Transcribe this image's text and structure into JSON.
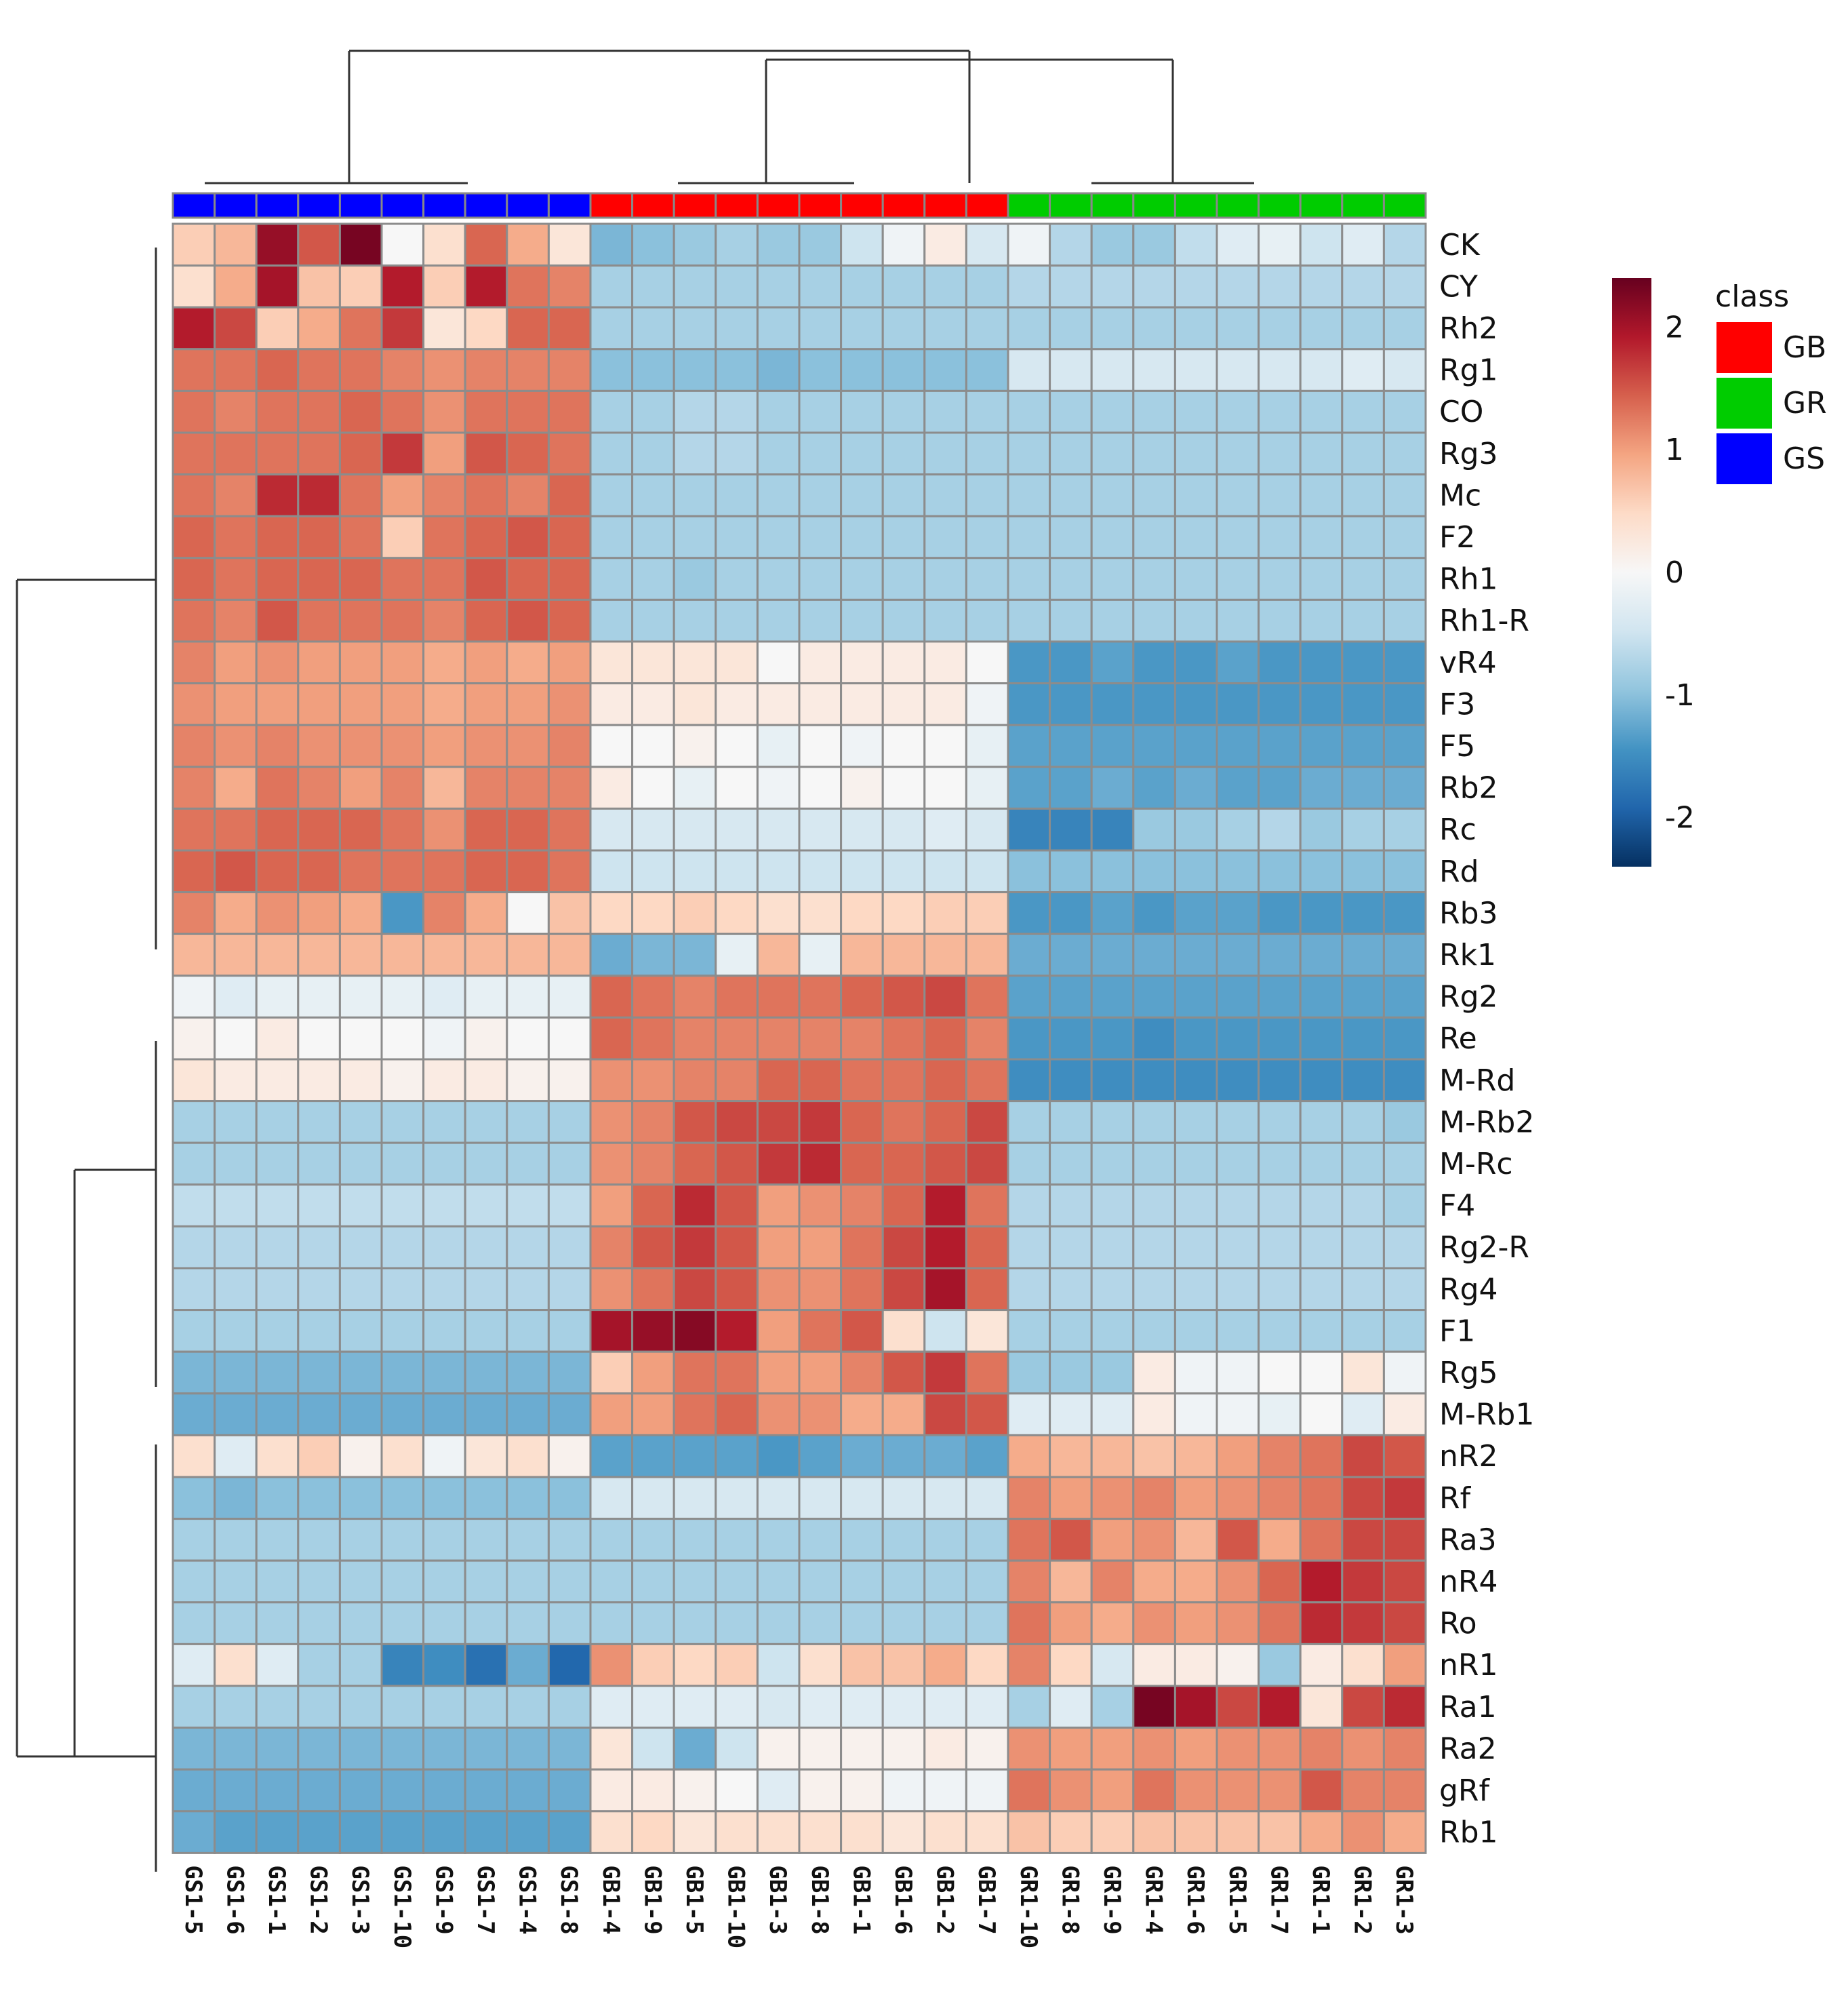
{
  "chart_data": {
    "type": "heatmap",
    "title": "",
    "rows": [
      "CK",
      "CY",
      "Rh2",
      "Rg1",
      "CO",
      "Rg3",
      "Mc",
      "F2",
      "Rh1",
      "Rh1-R",
      "vR4",
      "F3",
      "F5",
      "Rb2",
      "Rc",
      "Rd",
      "Rb3",
      "Rk1",
      "Rg2",
      "Re",
      "M-Rd",
      "M-Rb2",
      "M-Rc",
      "F4",
      "Rg2-R",
      "Rg4",
      "F1",
      "Rg5",
      "M-Rb1",
      "nR2",
      "Rf",
      "Ra3",
      "nR4",
      "Ro",
      "nR1",
      "Ra1",
      "Ra2",
      "gRf",
      "Rb1"
    ],
    "columns": [
      "GS1-5",
      "GS1-6",
      "GS1-1",
      "GS1-2",
      "GS1-3",
      "GS1-10",
      "GS1-9",
      "GS1-7",
      "GS1-4",
      "GS1-8",
      "GB1-4",
      "GB1-9",
      "GB1-5",
      "GB1-10",
      "GB1-3",
      "GB1-8",
      "GB1-1",
      "GB1-6",
      "GB1-2",
      "GB1-7",
      "GR1-10",
      "GR1-8",
      "GR1-9",
      "GR1-4",
      "GR1-6",
      "GR1-5",
      "GR1-7",
      "GR1-1",
      "GR1-2",
      "GR1-3"
    ],
    "column_classes": [
      "GS",
      "GS",
      "GS",
      "GS",
      "GS",
      "GS",
      "GS",
      "GS",
      "GS",
      "GS",
      "GB",
      "GB",
      "GB",
      "GB",
      "GB",
      "GB",
      "GB",
      "GB",
      "GB",
      "GB",
      "GR",
      "GR",
      "GR",
      "GR",
      "GR",
      "GR",
      "GR",
      "GR",
      "GR",
      "GR"
    ],
    "values": [
      [
        0.6,
        0.8,
        2.1,
        1.5,
        2.3,
        0.0,
        0.4,
        1.4,
        0.9,
        0.3,
        -1.1,
        -1.0,
        -0.9,
        -0.8,
        -0.9,
        -0.9,
        -0.5,
        -0.1,
        0.2,
        -0.4,
        -0.1,
        -0.7,
        -0.9,
        -0.9,
        -0.6,
        -0.3,
        -0.2,
        -0.5,
        -0.3,
        -0.7
      ],
      [
        0.4,
        0.9,
        2.0,
        0.7,
        0.6,
        1.9,
        0.6,
        1.9,
        1.3,
        1.2,
        -0.8,
        -0.8,
        -0.8,
        -0.8,
        -0.8,
        -0.8,
        -0.8,
        -0.8,
        -0.8,
        -0.8,
        -0.7,
        -0.7,
        -0.7,
        -0.7,
        -0.7,
        -0.7,
        -0.7,
        -0.7,
        -0.7,
        -0.7
      ],
      [
        1.9,
        1.6,
        0.6,
        0.9,
        1.3,
        1.7,
        0.3,
        0.5,
        1.4,
        1.4,
        -0.8,
        -0.8,
        -0.8,
        -0.8,
        -0.8,
        -0.8,
        -0.8,
        -0.8,
        -0.8,
        -0.8,
        -0.8,
        -0.8,
        -0.8,
        -0.8,
        -0.8,
        -0.8,
        -0.8,
        -0.8,
        -0.8,
        -0.8
      ],
      [
        1.3,
        1.3,
        1.4,
        1.3,
        1.3,
        1.2,
        1.1,
        1.2,
        1.2,
        1.2,
        -1.0,
        -1.0,
        -1.0,
        -1.0,
        -1.1,
        -1.0,
        -1.0,
        -1.0,
        -1.0,
        -1.0,
        -0.4,
        -0.4,
        -0.4,
        -0.4,
        -0.4,
        -0.4,
        -0.4,
        -0.4,
        -0.3,
        -0.4
      ],
      [
        1.3,
        1.2,
        1.3,
        1.3,
        1.4,
        1.3,
        1.1,
        1.3,
        1.3,
        1.3,
        -0.8,
        -0.8,
        -0.7,
        -0.7,
        -0.8,
        -0.8,
        -0.8,
        -0.8,
        -0.8,
        -0.8,
        -0.8,
        -0.8,
        -0.8,
        -0.8,
        -0.8,
        -0.8,
        -0.8,
        -0.8,
        -0.8,
        -0.8
      ],
      [
        1.3,
        1.3,
        1.3,
        1.3,
        1.4,
        1.7,
        1.0,
        1.5,
        1.4,
        1.3,
        -0.8,
        -0.8,
        -0.7,
        -0.7,
        -0.8,
        -0.8,
        -0.8,
        -0.8,
        -0.8,
        -0.8,
        -0.8,
        -0.8,
        -0.8,
        -0.8,
        -0.8,
        -0.8,
        -0.8,
        -0.8,
        -0.8,
        -0.8
      ],
      [
        1.3,
        1.2,
        1.8,
        1.8,
        1.3,
        1.0,
        1.2,
        1.3,
        1.2,
        1.4,
        -0.8,
        -0.8,
        -0.8,
        -0.8,
        -0.8,
        -0.8,
        -0.8,
        -0.8,
        -0.8,
        -0.8,
        -0.8,
        -0.8,
        -0.8,
        -0.8,
        -0.8,
        -0.8,
        -0.8,
        -0.8,
        -0.8,
        -0.8
      ],
      [
        1.4,
        1.3,
        1.4,
        1.4,
        1.3,
        0.6,
        1.3,
        1.4,
        1.5,
        1.4,
        -0.8,
        -0.8,
        -0.8,
        -0.8,
        -0.8,
        -0.8,
        -0.8,
        -0.8,
        -0.8,
        -0.8,
        -0.8,
        -0.8,
        -0.8,
        -0.8,
        -0.8,
        -0.8,
        -0.8,
        -0.8,
        -0.8,
        -0.8
      ],
      [
        1.4,
        1.3,
        1.4,
        1.4,
        1.4,
        1.3,
        1.3,
        1.5,
        1.4,
        1.4,
        -0.8,
        -0.8,
        -0.9,
        -0.8,
        -0.8,
        -0.8,
        -0.8,
        -0.8,
        -0.8,
        -0.8,
        -0.8,
        -0.8,
        -0.8,
        -0.8,
        -0.8,
        -0.8,
        -0.8,
        -0.8,
        -0.8,
        -0.8
      ],
      [
        1.3,
        1.2,
        1.5,
        1.3,
        1.3,
        1.3,
        1.2,
        1.4,
        1.5,
        1.4,
        -0.8,
        -0.8,
        -0.8,
        -0.8,
        -0.8,
        -0.8,
        -0.8,
        -0.8,
        -0.8,
        -0.8,
        -0.8,
        -0.8,
        -0.8,
        -0.8,
        -0.8,
        -0.8,
        -0.8,
        -0.8,
        -0.8,
        -0.8
      ],
      [
        1.2,
        1.0,
        1.1,
        1.0,
        1.0,
        1.0,
        0.9,
        1.0,
        0.9,
        1.0,
        0.3,
        0.3,
        0.3,
        0.3,
        0.0,
        0.2,
        0.2,
        0.2,
        0.2,
        0.0,
        -1.4,
        -1.4,
        -1.3,
        -1.4,
        -1.4,
        -1.3,
        -1.4,
        -1.4,
        -1.4,
        -1.4
      ],
      [
        1.1,
        1.0,
        1.0,
        1.0,
        1.0,
        1.0,
        0.9,
        1.0,
        1.0,
        1.1,
        0.2,
        0.2,
        0.3,
        0.2,
        0.2,
        0.2,
        0.2,
        0.2,
        0.2,
        -0.1,
        -1.4,
        -1.4,
        -1.4,
        -1.4,
        -1.4,
        -1.4,
        -1.4,
        -1.4,
        -1.4,
        -1.4
      ],
      [
        1.2,
        1.1,
        1.2,
        1.1,
        1.1,
        1.1,
        1.0,
        1.1,
        1.1,
        1.2,
        0.0,
        0.0,
        0.1,
        0.0,
        -0.2,
        0.0,
        -0.1,
        0.0,
        0.0,
        -0.2,
        -1.3,
        -1.3,
        -1.3,
        -1.3,
        -1.3,
        -1.3,
        -1.3,
        -1.3,
        -1.3,
        -1.3
      ],
      [
        1.2,
        0.9,
        1.3,
        1.2,
        1.0,
        1.2,
        0.8,
        1.2,
        1.2,
        1.2,
        0.2,
        0.0,
        -0.2,
        0.0,
        -0.1,
        0.0,
        0.1,
        0.0,
        0.0,
        -0.2,
        -1.3,
        -1.3,
        -1.2,
        -1.3,
        -1.2,
        -1.3,
        -1.3,
        -1.2,
        -1.2,
        -1.2
      ],
      [
        1.3,
        1.3,
        1.4,
        1.4,
        1.4,
        1.3,
        1.1,
        1.4,
        1.4,
        1.3,
        -0.4,
        -0.4,
        -0.4,
        -0.4,
        -0.4,
        -0.4,
        -0.4,
        -0.4,
        -0.3,
        -0.4,
        -1.6,
        -1.6,
        -1.6,
        -0.9,
        -0.9,
        -0.8,
        -0.7,
        -0.9,
        -0.8,
        -0.8
      ],
      [
        1.4,
        1.5,
        1.4,
        1.4,
        1.3,
        1.3,
        1.3,
        1.4,
        1.4,
        1.3,
        -0.5,
        -0.5,
        -0.5,
        -0.5,
        -0.5,
        -0.5,
        -0.5,
        -0.5,
        -0.5,
        -0.5,
        -1.0,
        -1.0,
        -1.0,
        -1.0,
        -1.0,
        -1.0,
        -1.0,
        -1.0,
        -1.0,
        -1.0
      ],
      [
        1.2,
        0.9,
        1.1,
        1.0,
        0.9,
        -1.4,
        1.2,
        0.9,
        0.0,
        0.7,
        0.5,
        0.5,
        0.6,
        0.5,
        0.4,
        0.4,
        0.5,
        0.5,
        0.6,
        0.6,
        -1.4,
        -1.4,
        -1.3,
        -1.4,
        -1.3,
        -1.3,
        -1.4,
        -1.4,
        -1.4,
        -1.4
      ],
      [
        0.8,
        0.8,
        0.8,
        0.8,
        0.8,
        0.8,
        0.8,
        0.8,
        0.8,
        0.8,
        -1.2,
        -1.1,
        -1.1,
        -0.2,
        0.8,
        -0.2,
        0.8,
        0.8,
        0.8,
        0.8,
        -1.2,
        -1.2,
        -1.2,
        -1.2,
        -1.2,
        -1.2,
        -1.2,
        -1.2,
        -1.2,
        -1.2
      ],
      [
        -0.1,
        -0.3,
        -0.2,
        -0.2,
        -0.2,
        -0.2,
        -0.3,
        -0.2,
        -0.2,
        -0.2,
        1.4,
        1.3,
        1.2,
        1.3,
        1.3,
        1.3,
        1.4,
        1.5,
        1.6,
        1.3,
        -1.3,
        -1.3,
        -1.3,
        -1.3,
        -1.3,
        -1.3,
        -1.3,
        -1.3,
        -1.3,
        -1.3
      ],
      [
        0.1,
        0.0,
        0.2,
        0.0,
        0.0,
        0.0,
        -0.1,
        0.1,
        0.0,
        0.0,
        1.4,
        1.3,
        1.2,
        1.2,
        1.2,
        1.2,
        1.2,
        1.3,
        1.4,
        1.2,
        -1.4,
        -1.4,
        -1.4,
        -1.5,
        -1.4,
        -1.4,
        -1.4,
        -1.4,
        -1.4,
        -1.4
      ],
      [
        0.3,
        0.2,
        0.2,
        0.2,
        0.2,
        0.1,
        0.2,
        0.2,
        0.1,
        0.1,
        1.1,
        1.1,
        1.2,
        1.2,
        1.4,
        1.4,
        1.3,
        1.3,
        1.4,
        1.3,
        -1.5,
        -1.5,
        -1.5,
        -1.5,
        -1.5,
        -1.5,
        -1.5,
        -1.5,
        -1.5,
        -1.5
      ],
      [
        -0.8,
        -0.8,
        -0.8,
        -0.8,
        -0.8,
        -0.8,
        -0.8,
        -0.8,
        -0.8,
        -0.8,
        1.1,
        1.2,
        1.5,
        1.6,
        1.6,
        1.7,
        1.4,
        1.3,
        1.4,
        1.6,
        -0.8,
        -0.8,
        -0.8,
        -0.8,
        -0.8,
        -0.8,
        -0.8,
        -0.8,
        -0.8,
        -0.9
      ],
      [
        -0.8,
        -0.8,
        -0.8,
        -0.8,
        -0.8,
        -0.8,
        -0.8,
        -0.8,
        -0.8,
        -0.8,
        1.1,
        1.2,
        1.4,
        1.5,
        1.7,
        1.8,
        1.4,
        1.4,
        1.5,
        1.6,
        -0.8,
        -0.8,
        -0.8,
        -0.8,
        -0.8,
        -0.8,
        -0.8,
        -0.8,
        -0.8,
        -0.8
      ],
      [
        -0.6,
        -0.6,
        -0.6,
        -0.6,
        -0.6,
        -0.6,
        -0.6,
        -0.6,
        -0.6,
        -0.6,
        1.0,
        1.4,
        1.8,
        1.5,
        1.0,
        1.1,
        1.2,
        1.4,
        1.9,
        1.3,
        -0.7,
        -0.7,
        -0.7,
        -0.7,
        -0.7,
        -0.7,
        -0.7,
        -0.7,
        -0.7,
        -0.8
      ],
      [
        -0.7,
        -0.7,
        -0.7,
        -0.7,
        -0.7,
        -0.7,
        -0.7,
        -0.7,
        -0.7,
        -0.7,
        1.2,
        1.5,
        1.7,
        1.5,
        1.0,
        1.0,
        1.3,
        1.6,
        1.9,
        1.4,
        -0.7,
        -0.7,
        -0.7,
        -0.7,
        -0.7,
        -0.7,
        -0.7,
        -0.7,
        -0.7,
        -0.7
      ],
      [
        -0.7,
        -0.7,
        -0.7,
        -0.7,
        -0.7,
        -0.7,
        -0.7,
        -0.7,
        -0.7,
        -0.7,
        1.1,
        1.3,
        1.6,
        1.5,
        1.1,
        1.1,
        1.3,
        1.6,
        2.0,
        1.4,
        -0.7,
        -0.7,
        -0.7,
        -0.7,
        -0.7,
        -0.7,
        -0.7,
        -0.7,
        -0.7,
        -0.7
      ],
      [
        -0.8,
        -0.8,
        -0.8,
        -0.8,
        -0.8,
        -0.8,
        -0.8,
        -0.8,
        -0.8,
        -0.8,
        2.0,
        2.1,
        2.2,
        1.9,
        1.0,
        1.3,
        1.5,
        0.4,
        -0.5,
        0.3,
        -0.8,
        -0.8,
        -0.8,
        -0.8,
        -0.8,
        -0.8,
        -0.8,
        -0.8,
        -0.8,
        -0.8
      ],
      [
        -1.1,
        -1.1,
        -1.1,
        -1.1,
        -1.1,
        -1.1,
        -1.1,
        -1.1,
        -1.1,
        -1.1,
        0.6,
        1.0,
        1.3,
        1.3,
        1.0,
        1.0,
        1.2,
        1.5,
        1.7,
        1.3,
        -0.9,
        -0.9,
        -0.9,
        0.2,
        -0.1,
        -0.1,
        0.0,
        0.0,
        0.3,
        -0.1
      ],
      [
        -1.2,
        -1.2,
        -1.2,
        -1.2,
        -1.2,
        -1.2,
        -1.2,
        -1.2,
        -1.2,
        -1.2,
        1.0,
        1.0,
        1.3,
        1.4,
        1.1,
        1.1,
        0.9,
        0.9,
        1.6,
        1.5,
        -0.3,
        -0.3,
        -0.3,
        0.2,
        -0.1,
        -0.1,
        -0.2,
        0.0,
        -0.3,
        0.2
      ],
      [
        0.4,
        -0.3,
        0.4,
        0.6,
        0.1,
        0.4,
        -0.1,
        0.3,
        0.4,
        0.1,
        -1.3,
        -1.3,
        -1.3,
        -1.3,
        -1.4,
        -1.3,
        -1.2,
        -1.2,
        -1.2,
        -1.3,
        0.9,
        0.8,
        0.8,
        0.7,
        0.8,
        1.0,
        1.2,
        1.3,
        1.6,
        1.5
      ],
      [
        -1.0,
        -1.1,
        -1.0,
        -1.0,
        -1.0,
        -1.0,
        -1.0,
        -1.0,
        -1.0,
        -1.0,
        -0.4,
        -0.4,
        -0.4,
        -0.4,
        -0.4,
        -0.4,
        -0.4,
        -0.4,
        -0.4,
        -0.4,
        1.2,
        1.0,
        1.1,
        1.2,
        1.0,
        1.1,
        1.2,
        1.3,
        1.6,
        1.7
      ],
      [
        -0.8,
        -0.8,
        -0.8,
        -0.8,
        -0.8,
        -0.8,
        -0.8,
        -0.8,
        -0.8,
        -0.8,
        -0.8,
        -0.8,
        -0.8,
        -0.8,
        -0.8,
        -0.8,
        -0.8,
        -0.8,
        -0.8,
        -0.8,
        1.3,
        1.5,
        1.0,
        1.1,
        0.8,
        1.5,
        0.9,
        1.3,
        1.6,
        1.6
      ],
      [
        -0.8,
        -0.8,
        -0.8,
        -0.8,
        -0.8,
        -0.8,
        -0.8,
        -0.8,
        -0.8,
        -0.8,
        -0.8,
        -0.8,
        -0.8,
        -0.8,
        -0.8,
        -0.8,
        -0.8,
        -0.8,
        -0.8,
        -0.8,
        1.2,
        0.8,
        1.2,
        0.9,
        0.9,
        1.1,
        1.4,
        1.9,
        1.7,
        1.6
      ],
      [
        -0.8,
        -0.8,
        -0.8,
        -0.8,
        -0.8,
        -0.8,
        -0.8,
        -0.8,
        -0.8,
        -0.8,
        -0.8,
        -0.8,
        -0.8,
        -0.8,
        -0.8,
        -0.8,
        -0.8,
        -0.8,
        -0.8,
        -0.8,
        1.3,
        1.0,
        0.9,
        1.1,
        1.0,
        1.1,
        1.3,
        1.8,
        1.7,
        1.6
      ],
      [
        -0.3,
        0.4,
        -0.3,
        -0.8,
        -0.8,
        -1.6,
        -1.5,
        -1.8,
        -1.2,
        -1.9,
        1.1,
        0.6,
        0.5,
        0.6,
        -0.5,
        0.4,
        0.7,
        0.7,
        0.9,
        0.5,
        1.2,
        0.5,
        -0.4,
        0.2,
        0.2,
        0.1,
        -0.9,
        0.2,
        0.4,
        1.0
      ],
      [
        -0.8,
        -0.8,
        -0.8,
        -0.8,
        -0.8,
        -0.8,
        -0.8,
        -0.8,
        -0.8,
        -0.8,
        -0.3,
        -0.3,
        -0.3,
        -0.3,
        -0.4,
        -0.3,
        -0.3,
        -0.3,
        -0.3,
        -0.3,
        -0.8,
        -0.3,
        -0.8,
        2.3,
        2.0,
        1.6,
        1.9,
        0.3,
        1.6,
        1.8
      ],
      [
        -1.1,
        -1.1,
        -1.1,
        -1.1,
        -1.1,
        -1.1,
        -1.1,
        -1.1,
        -1.1,
        -1.1,
        0.3,
        -0.5,
        -1.2,
        -0.5,
        0.1,
        0.1,
        0.1,
        0.1,
        0.2,
        0.1,
        1.1,
        1.0,
        1.0,
        1.1,
        1.0,
        1.1,
        1.1,
        1.2,
        1.1,
        1.2
      ],
      [
        -1.2,
        -1.2,
        -1.2,
        -1.2,
        -1.2,
        -1.2,
        -1.2,
        -1.2,
        -1.2,
        -1.2,
        0.2,
        0.2,
        0.1,
        0.0,
        -0.3,
        0.1,
        0.1,
        -0.1,
        -0.1,
        -0.1,
        1.3,
        1.1,
        1.0,
        1.3,
        1.1,
        1.1,
        1.1,
        1.5,
        1.2,
        1.2
      ],
      [
        -1.2,
        -1.3,
        -1.3,
        -1.3,
        -1.3,
        -1.3,
        -1.3,
        -1.3,
        -1.3,
        -1.3,
        0.4,
        0.5,
        0.3,
        0.4,
        0.4,
        0.4,
        0.4,
        0.3,
        0.4,
        0.4,
        0.7,
        0.6,
        0.6,
        0.7,
        0.7,
        0.7,
        0.7,
        0.9,
        1.1,
        0.9
      ]
    ],
    "color_scale": {
      "ticks": [
        "2",
        "1",
        "0",
        "-1",
        "-2"
      ],
      "tick_values": [
        2,
        1,
        0,
        -1,
        -2
      ],
      "range": [
        -2.4,
        2.4
      ],
      "colors": [
        "#053061",
        "#2166ac",
        "#4393c3",
        "#92c5de",
        "#d1e5f0",
        "#f7f7f7",
        "#fddbc7",
        "#f4a582",
        "#d6604d",
        "#b2182b",
        "#67001f"
      ]
    },
    "legend": {
      "title": "class",
      "items": [
        {
          "label": "GB",
          "color": "#ff0000"
        },
        {
          "label": "GR",
          "color": "#00cc00"
        },
        {
          "label": "GS",
          "color": "#0000ff"
        }
      ]
    },
    "xlabel": "",
    "ylabel": ""
  }
}
